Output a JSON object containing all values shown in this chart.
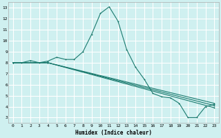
{
  "xlabel": "Humidex (Indice chaleur)",
  "bg_color": "#cff0f0",
  "grid_color": "#ffffff",
  "line_color": "#1a7a6e",
  "xlim": [
    -0.5,
    23.5
  ],
  "ylim": [
    2.5,
    13.5
  ],
  "yticks": [
    3,
    4,
    5,
    6,
    7,
    8,
    9,
    10,
    11,
    12,
    13
  ],
  "xticks": [
    0,
    1,
    2,
    3,
    4,
    5,
    6,
    7,
    8,
    9,
    10,
    11,
    12,
    13,
    14,
    15,
    16,
    17,
    18,
    19,
    20,
    21,
    22,
    23
  ],
  "curve1_x": [
    0,
    1,
    2,
    3,
    4,
    5,
    6,
    7,
    8,
    9,
    10,
    11,
    12,
    13,
    14,
    15,
    16,
    17,
    18,
    19,
    20,
    21,
    22,
    23
  ],
  "curve1_y": [
    8.0,
    8.0,
    8.2,
    8.0,
    8.15,
    8.5,
    8.3,
    8.3,
    9.0,
    10.6,
    12.5,
    13.1,
    11.8,
    9.2,
    7.6,
    6.5,
    5.2,
    4.9,
    4.8,
    4.3,
    3.0,
    3.0,
    4.0,
    4.2
  ],
  "curve2_x": [
    0,
    4,
    23
  ],
  "curve2_y": [
    8.0,
    8.0,
    4.3
  ],
  "curve3_x": [
    0,
    4,
    23
  ],
  "curve3_y": [
    8.0,
    8.0,
    4.1
  ],
  "curve4_x": [
    0,
    4,
    23
  ],
  "curve4_y": [
    8.0,
    8.0,
    3.9
  ]
}
